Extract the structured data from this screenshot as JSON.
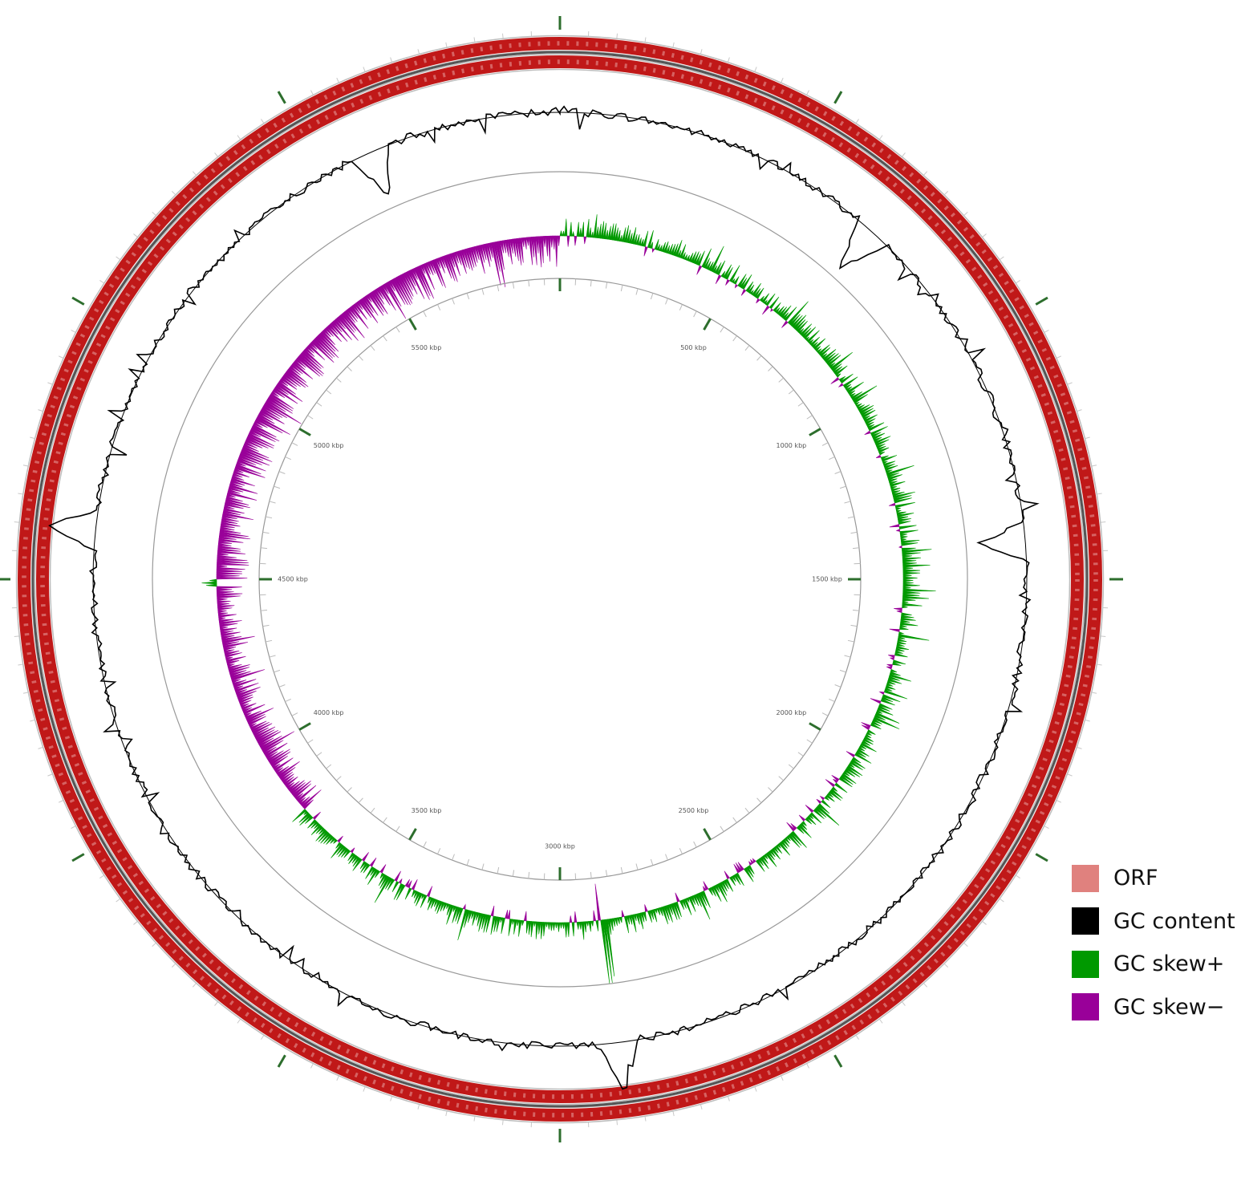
{
  "genome": {
    "length_kbp": 6000,
    "position_labels": [
      "500 kbp",
      "1000 kbp",
      "1500 kbp",
      "2000 kbp",
      "2500 kbp",
      "3000 kbp",
      "3500 kbp",
      "4000 kbp",
      "4500 kbp",
      "5000 kbp",
      "5500 kbp"
    ],
    "label_positions_kbp": [
      500,
      1000,
      1500,
      2000,
      2500,
      3000,
      3500,
      4000,
      4500,
      5000,
      5500
    ]
  },
  "tracks": [
    {
      "key": "orf",
      "description": "ORF",
      "color": "#e0817e"
    },
    {
      "key": "gc_content",
      "description": "GC content",
      "color": "#000000"
    },
    {
      "key": "gc_skew_plus",
      "description": "GC skew+",
      "color": "#009900"
    },
    {
      "key": "gc_skew_minus",
      "description": "GC skew−",
      "color": "#990099"
    }
  ],
  "colors": {
    "orf_fill": "#c01818",
    "orf_edge": "#e8a0a0",
    "axis_ring": "#999999",
    "tick_major": "#2d6e2d"
  },
  "gc_skew_minus_range_kbp": [
    [
      3800,
      4480
    ],
    [
      4500,
      6000
    ]
  ],
  "gc_content_peaks_kbp": [
    {
      "pos": 1420,
      "direction": "in"
    },
    {
      "pos": 2880,
      "direction": "out"
    },
    {
      "pos": 5600,
      "direction": "in"
    },
    {
      "pos": 700,
      "direction": "in"
    },
    {
      "pos": 4600,
      "direction": "out"
    }
  ]
}
